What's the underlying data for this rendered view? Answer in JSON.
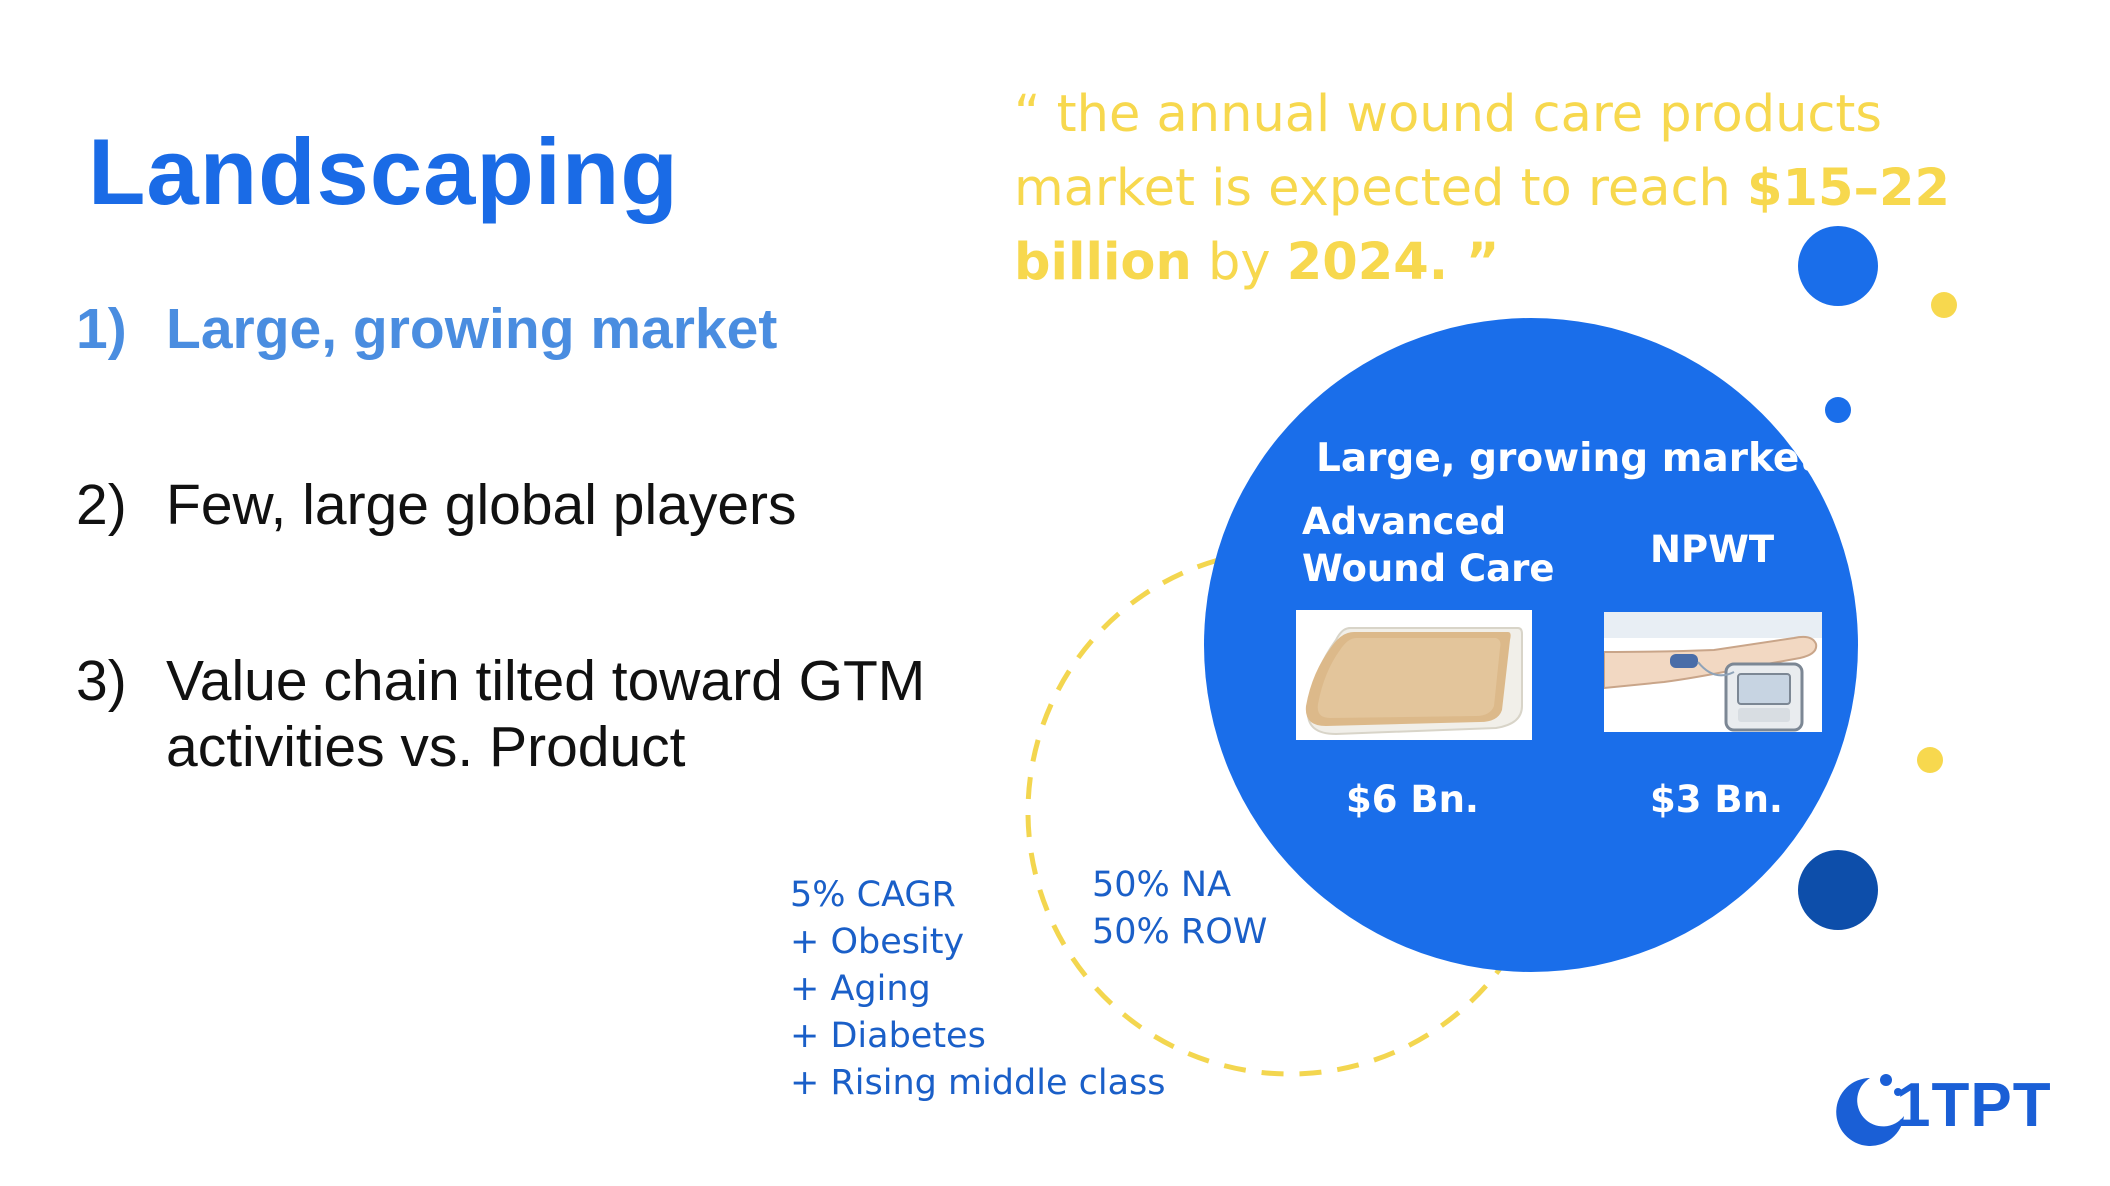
{
  "slide": {
    "title": "Landscaping",
    "points": [
      {
        "num": "1)",
        "lines": [
          "Large, growing market"
        ]
      },
      {
        "num": "2)",
        "lines": [
          "Few, large global players"
        ]
      },
      {
        "num": "3)",
        "lines": [
          "Value chain tilted toward GTM",
          "activities vs. Product"
        ]
      }
    ]
  },
  "quote": {
    "part1": "“ the annual wound care products market is expected to reach ",
    "amount": "$15–22 billion",
    "part2": " by ",
    "year": "2024.",
    "close": " ”"
  },
  "market_circle": {
    "heading": "Large, growing market",
    "left_label_line1": "Advanced",
    "left_label_line2": "Wound Care",
    "right_label": "NPWT",
    "left_value": "$6 Bn.",
    "right_value": "$3 Bn."
  },
  "drivers": [
    "5% CAGR",
    "+ Obesity",
    "+ Aging",
    "+ Diabetes",
    "+ Rising middle class"
  ],
  "regions": [
    "50% NA",
    "50% ROW"
  ],
  "logo": {
    "text": "1TPT"
  },
  "colors": {
    "primary_blue": "#1a6eea",
    "title_blue": "#1a6be6",
    "highlight_blue": "#4a8de0",
    "quote_yellow": "#f7d84e",
    "dark_blue_dot": "#0d4eaa"
  },
  "icons": {
    "wound_dressing": "wound-dressing-image",
    "npwt_device": "npwt-device-image",
    "logo_mark": "crescent-logo-icon"
  }
}
